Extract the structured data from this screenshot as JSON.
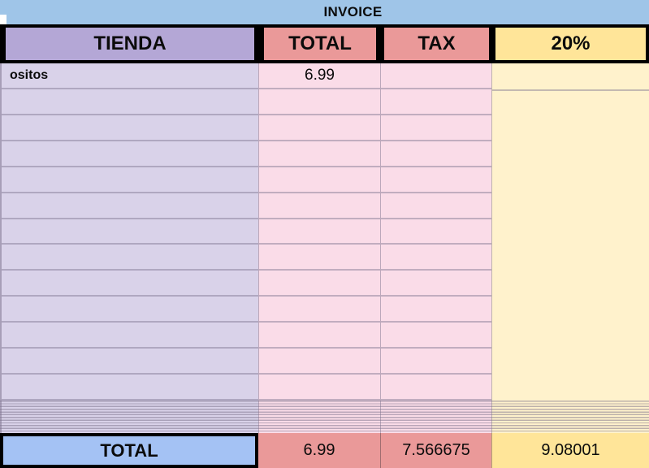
{
  "title": "INVOICE",
  "columns": [
    {
      "label": "TIENDA"
    },
    {
      "label": "TOTAL"
    },
    {
      "label": "TAX"
    },
    {
      "label": "20%"
    }
  ],
  "rows": [
    {
      "tienda": "ositos",
      "total": "6.99",
      "tax": "",
      "pct": ""
    }
  ],
  "empty_rows": 12,
  "compressed_rows": 12,
  "footer": {
    "label": "TOTAL",
    "total": "6.99",
    "tax": "7.566675",
    "pct": "9.08001"
  },
  "colors": {
    "title_bar": "#9fc5e8",
    "header_tienda": "#b4a7d6",
    "header_total_tax": "#ea9999",
    "header_pct": "#ffe599",
    "body_tienda": "#d9d2e9",
    "body_total_tax": "#fadce8",
    "body_pct": "#fff2cc",
    "footer_label_bg": "#a4c2f4",
    "footer_total_tax_bg": "#ea9999",
    "footer_pct_bg": "#ffe599",
    "border_black": "#000000",
    "grid_line": "#7d738e"
  }
}
